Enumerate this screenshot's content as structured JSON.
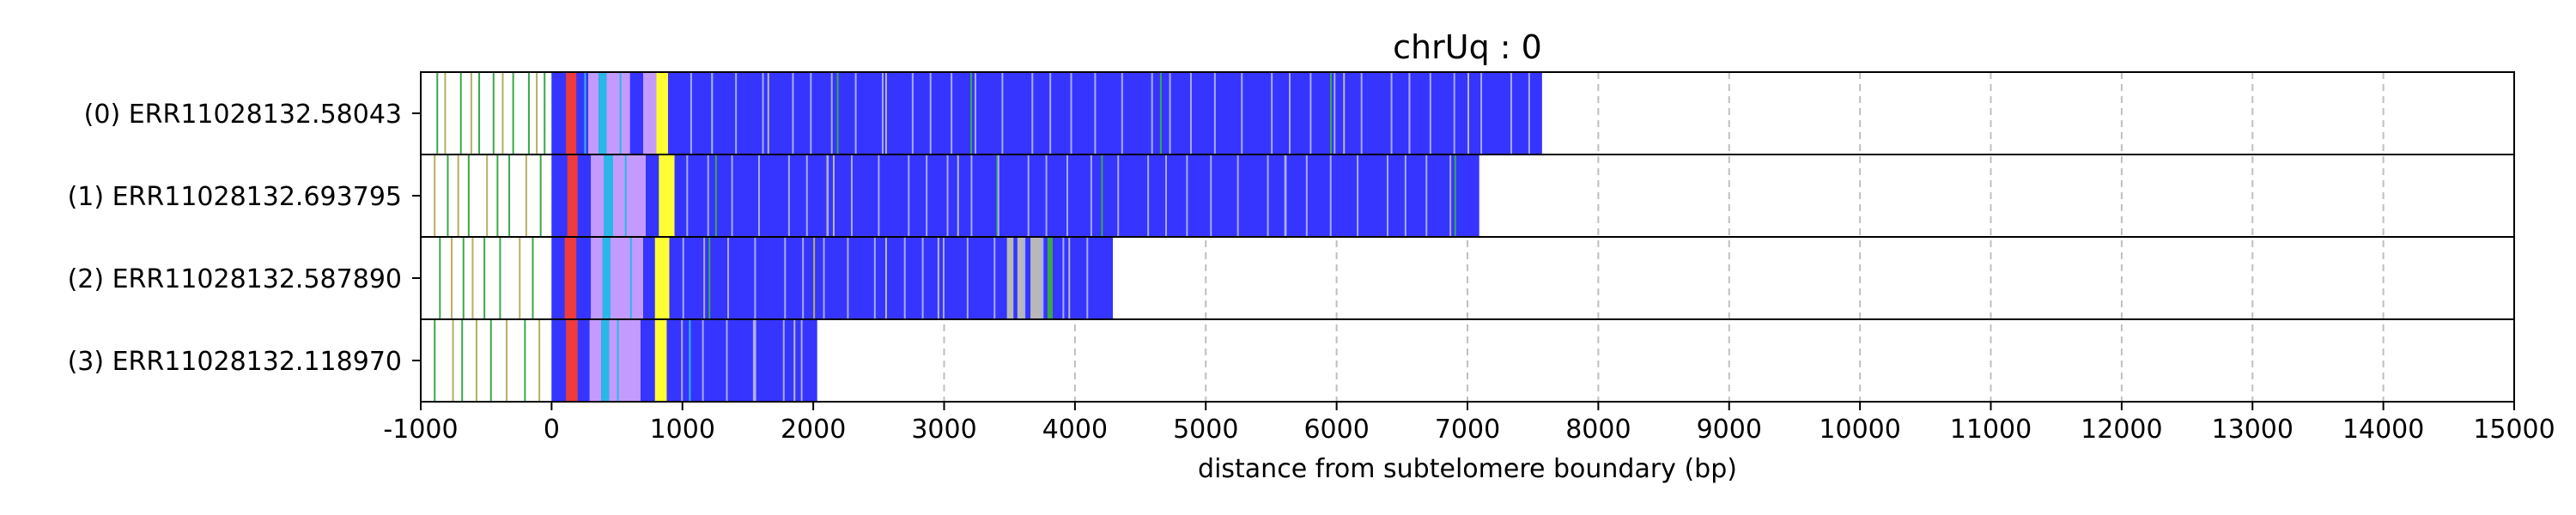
{
  "chart_data": {
    "type": "bar",
    "orientation": "horizontal",
    "title": "chrUq : 0",
    "xlabel": "distance from subtelomere boundary (bp)",
    "ylabel": "",
    "xlim": [
      -1000,
      15000
    ],
    "xticks": [
      "-1000",
      "0",
      "1000",
      "2000",
      "3000",
      "4000",
      "5000",
      "6000",
      "7000",
      "8000",
      "9000",
      "10000",
      "11000",
      "12000",
      "13000",
      "14000",
      "15000"
    ],
    "grid": "vertical-dashed",
    "colors": {
      "repeat": "#3535ff",
      "red": "#ee3b3b",
      "yellow": "#ffff33",
      "violet": "#c39bff",
      "cyan": "#28b8e8",
      "green": "#3aa84a",
      "olive": "#b5b060",
      "gray": "#b8b8b8",
      "grid": "#bfbfbf"
    },
    "reads": [
      {
        "label": "(0) ERR11028132.58043",
        "start": -1000,
        "end": 7570,
        "repeat_start": 1000,
        "segments": [
          {
            "start": 0,
            "end": 110,
            "color": "blue"
          },
          {
            "start": 110,
            "end": 190,
            "color": "red"
          },
          {
            "start": 190,
            "end": 280,
            "color": "blue"
          },
          {
            "start": 280,
            "end": 360,
            "color": "violet"
          },
          {
            "start": 360,
            "end": 420,
            "color": "cyan"
          },
          {
            "start": 420,
            "end": 600,
            "color": "violet"
          },
          {
            "start": 600,
            "end": 700,
            "color": "blue"
          },
          {
            "start": 700,
            "end": 800,
            "color": "violet"
          },
          {
            "start": 800,
            "end": 890,
            "color": "yellow"
          },
          {
            "start": 890,
            "end": 1000,
            "color": "blue"
          }
        ],
        "marks": [
          {
            "x": -880,
            "color": "green"
          },
          {
            "x": -820,
            "color": "olive"
          },
          {
            "x": -700,
            "color": "green"
          },
          {
            "x": -620,
            "color": "olive"
          },
          {
            "x": -560,
            "color": "green"
          },
          {
            "x": -450,
            "color": "green"
          },
          {
            "x": -380,
            "color": "olive"
          },
          {
            "x": -300,
            "color": "green"
          },
          {
            "x": -180,
            "color": "green"
          },
          {
            "x": -120,
            "color": "olive"
          },
          {
            "x": -60,
            "color": "green"
          },
          {
            "x": 250,
            "color": "cyan"
          },
          {
            "x": 520,
            "color": "cyan"
          },
          {
            "x": 1220,
            "color": "green"
          },
          {
            "x": 1650,
            "color": "gray"
          },
          {
            "x": 2180,
            "color": "green"
          },
          {
            "x": 2550,
            "color": "gray"
          },
          {
            "x": 3200,
            "color": "green"
          },
          {
            "x": 4650,
            "color": "green"
          },
          {
            "x": 5950,
            "color": "green"
          },
          {
            "x": 6050,
            "color": "gray"
          },
          {
            "x": 6550,
            "color": "gray"
          },
          {
            "x": 7000,
            "color": "gray"
          }
        ]
      },
      {
        "label": "(1) ERR11028132.693795",
        "start": -1000,
        "end": 7090,
        "repeat_start": 970,
        "segments": [
          {
            "start": 0,
            "end": 120,
            "color": "blue"
          },
          {
            "start": 120,
            "end": 200,
            "color": "red"
          },
          {
            "start": 200,
            "end": 300,
            "color": "blue"
          },
          {
            "start": 300,
            "end": 400,
            "color": "violet"
          },
          {
            "start": 400,
            "end": 470,
            "color": "cyan"
          },
          {
            "start": 470,
            "end": 720,
            "color": "violet"
          },
          {
            "start": 720,
            "end": 820,
            "color": "blue"
          },
          {
            "start": 820,
            "end": 940,
            "color": "yellow"
          },
          {
            "start": 940,
            "end": 970,
            "color": "blue"
          }
        ],
        "marks": [
          {
            "x": -900,
            "color": "olive"
          },
          {
            "x": -800,
            "color": "green"
          },
          {
            "x": -720,
            "color": "olive"
          },
          {
            "x": -640,
            "color": "green"
          },
          {
            "x": -500,
            "color": "olive"
          },
          {
            "x": -420,
            "color": "green"
          },
          {
            "x": -330,
            "color": "green"
          },
          {
            "x": -200,
            "color": "olive"
          },
          {
            "x": -90,
            "color": "green"
          },
          {
            "x": 560,
            "color": "cyan"
          },
          {
            "x": 1250,
            "color": "green"
          },
          {
            "x": 2100,
            "color": "olive"
          },
          {
            "x": 2150,
            "color": "gray"
          },
          {
            "x": 3100,
            "color": "gray"
          },
          {
            "x": 3400,
            "color": "green"
          },
          {
            "x": 4200,
            "color": "green"
          },
          {
            "x": 5600,
            "color": "gray"
          },
          {
            "x": 6900,
            "color": "green"
          }
        ]
      },
      {
        "label": "(2) ERR11028132.587890",
        "start": -1000,
        "end": 4290,
        "repeat_start": 940,
        "segments": [
          {
            "start": 0,
            "end": 100,
            "color": "blue"
          },
          {
            "start": 100,
            "end": 190,
            "color": "red"
          },
          {
            "start": 190,
            "end": 300,
            "color": "blue"
          },
          {
            "start": 300,
            "end": 390,
            "color": "violet"
          },
          {
            "start": 390,
            "end": 450,
            "color": "cyan"
          },
          {
            "start": 450,
            "end": 700,
            "color": "violet"
          },
          {
            "start": 700,
            "end": 790,
            "color": "blue"
          },
          {
            "start": 790,
            "end": 900,
            "color": "yellow"
          },
          {
            "start": 900,
            "end": 940,
            "color": "blue"
          },
          {
            "start": 3480,
            "end": 3530,
            "color": "gray"
          },
          {
            "start": 3560,
            "end": 3620,
            "color": "gray"
          },
          {
            "start": 3660,
            "end": 3760,
            "color": "gray"
          },
          {
            "start": 3790,
            "end": 3830,
            "color": "green"
          }
        ],
        "marks": [
          {
            "x": -860,
            "color": "green"
          },
          {
            "x": -770,
            "color": "olive"
          },
          {
            "x": -680,
            "color": "green"
          },
          {
            "x": -610,
            "color": "olive"
          },
          {
            "x": -520,
            "color": "green"
          },
          {
            "x": -400,
            "color": "green"
          },
          {
            "x": -250,
            "color": "olive"
          },
          {
            "x": -150,
            "color": "green"
          },
          {
            "x": 600,
            "color": "cyan"
          },
          {
            "x": 1200,
            "color": "green"
          },
          {
            "x": 2000,
            "color": "olive"
          },
          {
            "x": 2550,
            "color": "gray"
          },
          {
            "x": 2950,
            "color": "gray"
          },
          {
            "x": 3950,
            "color": "gray"
          }
        ]
      },
      {
        "label": "(3) ERR11028132.118970",
        "start": -1000,
        "end": 2030,
        "repeat_start": 930,
        "segments": [
          {
            "start": 0,
            "end": 110,
            "color": "blue"
          },
          {
            "start": 110,
            "end": 200,
            "color": "red"
          },
          {
            "start": 200,
            "end": 290,
            "color": "blue"
          },
          {
            "start": 290,
            "end": 380,
            "color": "violet"
          },
          {
            "start": 380,
            "end": 440,
            "color": "cyan"
          },
          {
            "start": 440,
            "end": 680,
            "color": "violet"
          },
          {
            "start": 680,
            "end": 790,
            "color": "blue"
          },
          {
            "start": 790,
            "end": 880,
            "color": "yellow"
          },
          {
            "start": 880,
            "end": 930,
            "color": "blue"
          }
        ],
        "marks": [
          {
            "x": -900,
            "color": "green"
          },
          {
            "x": -760,
            "color": "olive"
          },
          {
            "x": -690,
            "color": "green"
          },
          {
            "x": -580,
            "color": "olive"
          },
          {
            "x": -470,
            "color": "green"
          },
          {
            "x": -350,
            "color": "olive"
          },
          {
            "x": -210,
            "color": "green"
          },
          {
            "x": -100,
            "color": "olive"
          },
          {
            "x": 500,
            "color": "cyan"
          },
          {
            "x": 1050,
            "color": "cyan"
          },
          {
            "x": 1550,
            "color": "gray"
          },
          {
            "x": 1850,
            "color": "gray"
          }
        ]
      }
    ]
  }
}
